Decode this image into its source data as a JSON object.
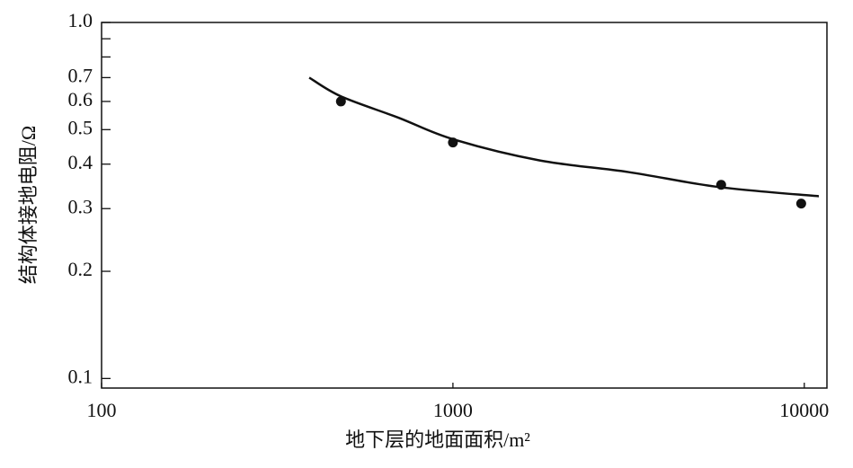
{
  "chart_data": {
    "type": "scatter",
    "xlabel": "地下层的地面面积/m²",
    "ylabel": "结构体接地电阻/Ω",
    "xscale": "log",
    "yscale": "log",
    "xlim": [
      100,
      11600
    ],
    "ylim": [
      0.094,
      1
    ],
    "xticks": [
      100,
      1000,
      10000
    ],
    "yticks": [
      0.1,
      0.2,
      0.3,
      0.4,
      0.5,
      0.6,
      0.7,
      {
        "value": 1,
        "label": "1.0"
      }
    ],
    "yminorticks": [
      0.8,
      0.9
    ],
    "series": [
      {
        "color": "#111111",
        "x": [
          480,
          1000,
          5800,
          9800
        ],
        "values": [
          0.6,
          0.46,
          0.35,
          0.31
        ]
      }
    ],
    "curve": {
      "color": "#111111",
      "x": [
        390,
        480,
        700,
        1000,
        1760,
        3160,
        5700,
        11000
      ],
      "values": [
        0.7,
        0.62,
        0.54,
        0.47,
        0.41,
        0.38,
        0.345,
        0.325
      ]
    }
  }
}
